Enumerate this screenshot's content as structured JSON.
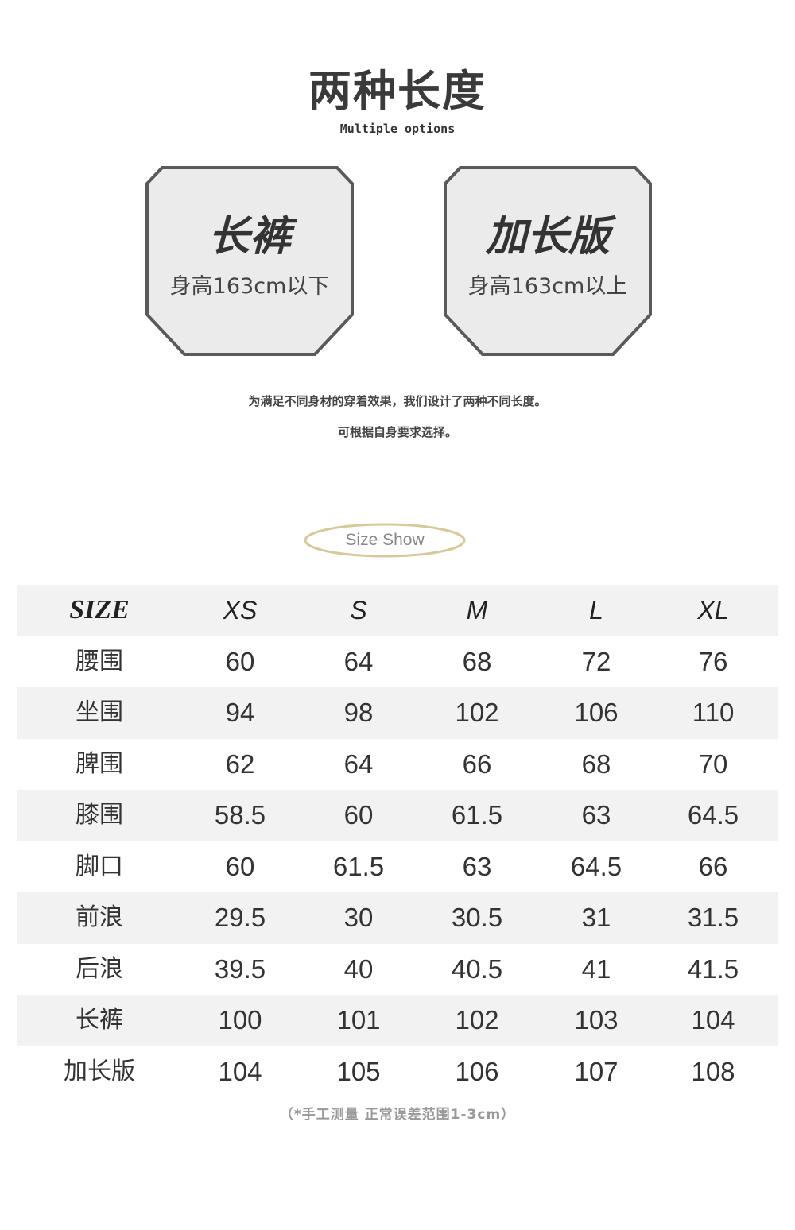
{
  "header": {
    "title": "两种长度",
    "subtitle": "Multiple options"
  },
  "options": [
    {
      "name": "长裤",
      "height_range": "身高163cm以下"
    },
    {
      "name": "加长版",
      "height_range": "身高163cm以上"
    }
  ],
  "description": [
    "为满足不同身材的穿着效果，我们设计了两种不同长度。",
    "可根据自身要求选择。"
  ],
  "size_show_label": "Size Show",
  "colors": {
    "box_fill": "#ebebeb",
    "box_border": "#5a5a5a",
    "oval_border": "#d8c89a",
    "row_shade": "#f2f2f2"
  },
  "table": {
    "headers": [
      "SIZE",
      "XS",
      "S",
      "M",
      "L",
      "XL"
    ],
    "rows": [
      [
        "腰围",
        "60",
        "64",
        "68",
        "72",
        "76"
      ],
      [
        "坐围",
        "94",
        "98",
        "102",
        "106",
        "110"
      ],
      [
        "脾围",
        "62",
        "64",
        "66",
        "68",
        "70"
      ],
      [
        "膝围",
        "58.5",
        "60",
        "61.5",
        "63",
        "64.5"
      ],
      [
        "脚口",
        "60",
        "61.5",
        "63",
        "64.5",
        "66"
      ],
      [
        "前浪",
        "29.5",
        "30",
        "30.5",
        "31",
        "31.5"
      ],
      [
        "后浪",
        "39.5",
        "40",
        "40.5",
        "41",
        "41.5"
      ],
      [
        "长裤",
        "100",
        "101",
        "102",
        "103",
        "104"
      ],
      [
        "加长版",
        "104",
        "105",
        "106",
        "107",
        "108"
      ]
    ]
  },
  "note": "（*手工测量 正常误差范围1-3cm）"
}
